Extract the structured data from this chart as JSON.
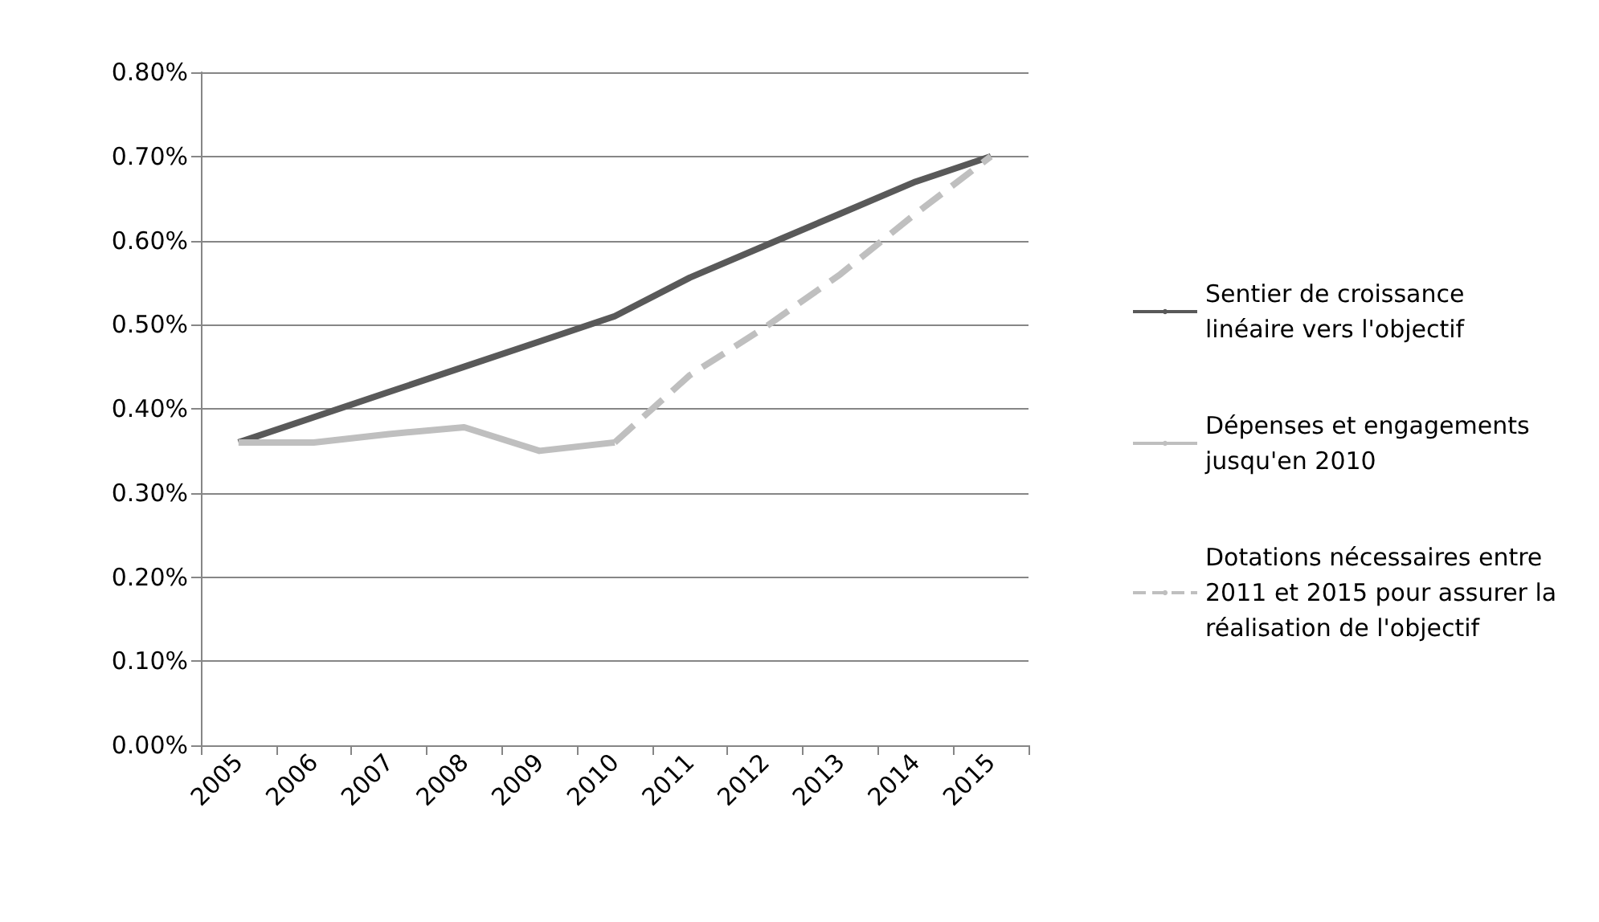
{
  "chart_data": {
    "type": "line",
    "categories": [
      "2005",
      "2006",
      "2007",
      "2008",
      "2009",
      "2010",
      "2011",
      "2012",
      "2013",
      "2014",
      "2015"
    ],
    "series": [
      {
        "name": "Sentier de croissance linéaire vers l'objectif",
        "color": "#595959",
        "line_style": "solid",
        "values": [
          0.36,
          0.39,
          0.42,
          0.45,
          0.48,
          0.51,
          0.556,
          0.594,
          0.632,
          0.67,
          0.7
        ]
      },
      {
        "name": "Dépenses et engagements jusqu'en 2010",
        "color": "#bfbfbf",
        "line_style": "solid",
        "values": [
          0.36,
          0.36,
          0.37,
          0.378,
          0.35,
          0.36,
          null,
          null,
          null,
          null,
          null
        ]
      },
      {
        "name": "Dotations nécessaires entre 2011 et 2015 pour assurer la réalisation de l'objectif",
        "color": "#bfbfbf",
        "line_style": "dashed",
        "values": [
          null,
          null,
          null,
          null,
          null,
          0.36,
          0.44,
          0.497,
          0.56,
          0.632,
          0.7
        ]
      }
    ],
    "ylim": [
      0,
      0.8
    ],
    "yticks": [
      {
        "value": 0,
        "label": "0.00%"
      },
      {
        "value": 0.1,
        "label": "0.10%"
      },
      {
        "value": 0.2,
        "label": "0.20%"
      },
      {
        "value": 0.3,
        "label": "0.30%"
      },
      {
        "value": 0.4,
        "label": "0.40%"
      },
      {
        "value": 0.5,
        "label": "0.50%"
      },
      {
        "value": 0.6,
        "label": "0.60%"
      },
      {
        "value": 0.7,
        "label": "0.70%"
      },
      {
        "value": 0.8,
        "label": "0.80%"
      }
    ],
    "grid": "y",
    "legend": "right",
    "marker": "none"
  }
}
